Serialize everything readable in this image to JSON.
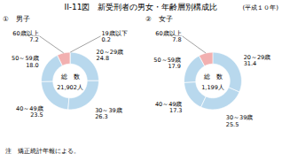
{
  "title": "II‑11図　新受刑者の男女・年齢層別構成比",
  "subtitle": "(平成１０年)",
  "annotations": [
    "注　矯正統計年報による。"
  ],
  "chart_data": [
    {
      "type": "donut",
      "title": "①　男子",
      "categories": [
        "19歳以下",
        "20～29歳",
        "30～39歳",
        "40～49歳",
        "50～59歳",
        "60歳以上"
      ],
      "values": [
        0.2,
        24.8,
        26.3,
        23.5,
        18.0,
        7.2
      ],
      "value_labels": [
        "0.2",
        "24.8",
        "26.3",
        "23.5",
        "18.0",
        "7.2"
      ],
      "colors": [
        "#f2b0b0",
        "#b8d8ed",
        "#b8d8ed",
        "#b8d8ed",
        "#b8d8ed",
        "#f2b0b0"
      ],
      "annotations": [
        "総　数",
        "21,902人"
      ],
      "data_labels": true
    },
    {
      "type": "donut",
      "title": "②　女子",
      "categories": [
        "20～29歳",
        "30～39歳",
        "40～49歳",
        "50～59歳",
        "60歳以上"
      ],
      "values": [
        31.4,
        25.5,
        17.3,
        17.9,
        7.8
      ],
      "value_labels": [
        "31.4",
        "25.5",
        "17.3",
        "17.9",
        "7.8"
      ],
      "colors": [
        "#b8d8ed",
        "#b8d8ed",
        "#b8d8ed",
        "#b8d8ed",
        "#f2b0b0"
      ],
      "annotations": [
        "総　数",
        "1,199人"
      ],
      "data_labels": true
    }
  ]
}
